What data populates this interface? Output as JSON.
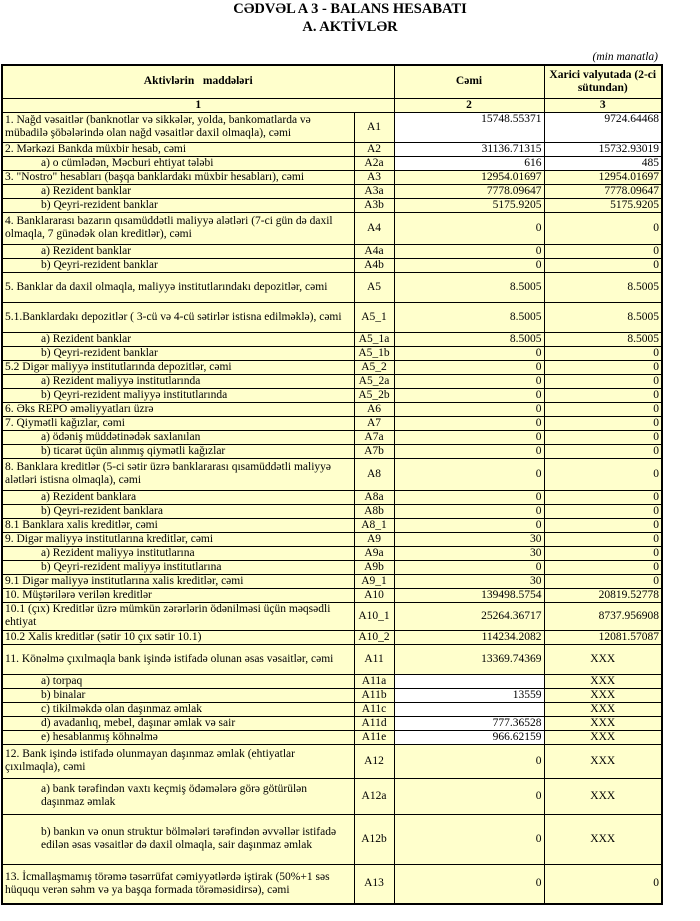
{
  "title": "CƏDVƏL A 3 - BALANS HESABATI",
  "subtitle": "A. AKTİVLƏR",
  "unit": "(min manatla)",
  "columns": {
    "items": "Aktivlərin   maddələri",
    "total": "Cəmi",
    "foreign": "Xarici valyutada (2-ci sütundan)",
    "n1": "1",
    "n2": "2",
    "n3": "3"
  },
  "rows": [
    {
      "label": "1. Nağd vəsaitlər (banknotlar və sikkələr, yolda, bankomatlarda və mübadilə şöbələrində olan nağd vəsaitlər daxil olmaqla), cəmi",
      "code": "A1",
      "total": "15748.55371",
      "foreign": "9724.64468"
    },
    {
      "label": "2. Mərkəzi Bankda müxbir hesab, cəmi",
      "code": "A2",
      "total": "31136.71315",
      "foreign": "15732.93019"
    },
    {
      "label": "a) o cümlədən, Məcburi ehtiyat tələbi",
      "code": "A2a",
      "total": "616",
      "foreign": "485",
      "indent": true
    },
    {
      "label": "3. \"Nostro\" hesabları (başqa banklardakı müxbir hesabları), cəmi",
      "code": "A3",
      "total": "12954.01697",
      "foreign": "12954.01697"
    },
    {
      "label": "a) Rezident banklar",
      "code": "A3a",
      "total": "7778.09647",
      "foreign": "7778.09647",
      "indent": true
    },
    {
      "label": "b) Qeyri-rezident banklar",
      "code": "A3b",
      "total": "5175.9205",
      "foreign": "5175.9205",
      "indent": true
    },
    {
      "label": "4. Banklararası bazarın qısamüddətli maliyyə alətləri (7-ci gün də daxil olmaqla, 7 günədək olan kreditlər), cəmi",
      "code": "A4",
      "total": "0",
      "foreign": "0"
    },
    {
      "label": "a) Rezident banklar",
      "code": "A4a",
      "total": "0",
      "foreign": "0",
      "indent": true
    },
    {
      "label": "b) Qeyri-rezident banklar",
      "code": "A4b",
      "total": "0",
      "foreign": "0",
      "indent": true
    },
    {
      "label": "5. Banklar da daxil olmaqla, maliyyə institutlarındakı depozitlər, cəmi",
      "code": "A5",
      "total": "8.5005",
      "foreign": "8.5005"
    },
    {
      "label": "5.1.Banklardakı depozitlər ( 3-cü və 4-cü sətirlər istisna edilməklə), cəmi",
      "code": "A5_1",
      "total": "8.5005",
      "foreign": "8.5005"
    },
    {
      "label": "a) Rezident banklar",
      "code": "A5_1a",
      "total": "8.5005",
      "foreign": "8.5005",
      "indent": true
    },
    {
      "label": "b) Qeyri-rezident banklar",
      "code": "A5_1b",
      "total": "0",
      "foreign": "0",
      "indent": true
    },
    {
      "label": "5.2 Digər maliyyə institutlarında depozitlər, cəmi",
      "code": "A5_2",
      "total": "0",
      "foreign": "0"
    },
    {
      "label": "a) Rezident maliyyə institutlarında",
      "code": "A5_2a",
      "total": "0",
      "foreign": "0",
      "indent": true
    },
    {
      "label": "b) Qeyri-rezident maliyyə institutlarında",
      "code": "A5_2b",
      "total": "0",
      "foreign": "0",
      "indent": true
    },
    {
      "label": "6. Əks REPO əməliyyatları üzrə",
      "code": "A6",
      "total": "0",
      "foreign": "0"
    },
    {
      "label": "7. Qiymətli kağızlar, cəmi",
      "code": "A7",
      "total": "0",
      "foreign": "0"
    },
    {
      "label": "a) ödəniş müddətinədək saxlanılan",
      "code": "A7a",
      "total": "0",
      "foreign": "0",
      "indent": true
    },
    {
      "label": "b) ticarət üçün alınmış qiymətli kağızlar",
      "code": "A7b",
      "total": "0",
      "foreign": "0",
      "indent": true
    },
    {
      "label": "8. Banklara kreditlər (5-ci sətir üzrə banklararası qısamüddətli maliyyə alətləri istisna olmaqla), cəmi",
      "code": "A8",
      "total": "0",
      "foreign": "0"
    },
    {
      "label": "a) Rezident banklara",
      "code": "A8a",
      "total": "0",
      "foreign": "0",
      "indent": true
    },
    {
      "label": "b) Qeyri-rezident banklara",
      "code": "A8b",
      "total": "0",
      "foreign": "0",
      "indent": true
    },
    {
      "label": "8.1 Banklara xalis kreditlər, cəmi",
      "code": "A8_1",
      "total": "0",
      "foreign": "0"
    },
    {
      "label": "9. Digər maliyyə institutlarına kreditlər, cəmi",
      "code": "A9",
      "total": "30",
      "foreign": "0"
    },
    {
      "label": "a) Rezident maliyyə institutlarına",
      "code": "A9a",
      "total": "30",
      "foreign": "0",
      "indent": true
    },
    {
      "label": "b) Qeyri-rezident maliyyə institutlarına",
      "code": "A9b",
      "total": "0",
      "foreign": "0",
      "indent": true
    },
    {
      "label": "9.1 Digər maliyyə institutlarına xalis kreditlər, cəmi",
      "code": "A9_1",
      "total": "30",
      "foreign": "0"
    },
    {
      "label": "10. Müştərilərə verilən kreditlər",
      "code": "A10",
      "total": "139498.5754",
      "foreign": "20819.52778"
    },
    {
      "label": "10.1 (çıx) Kreditlər üzrə mümkün zərərlərin ödənilməsi üçün məqsədli ehtiyat",
      "code": "A10_1",
      "total": "25264.36717",
      "foreign": "8737.956908"
    },
    {
      "label": "10.2 Xalis kreditlər (sətir 10 çıx sətir 10.1)",
      "code": "A10_2",
      "total": "114234.2082",
      "foreign": "12081.57087"
    },
    {
      "label": "11. Könəlmə çıxılmaqla bank işində istifadə olunan əsas vəsaitlər, cəmi",
      "code": "A11",
      "total": "13369.74369",
      "foreign": "XXX"
    },
    {
      "label": "a) torpaq",
      "code": "A11a",
      "total": "",
      "foreign": "XXX",
      "indent": true
    },
    {
      "label": "b) binalar",
      "code": "A11b",
      "total": "13559",
      "foreign": "XXX",
      "indent": true
    },
    {
      "label": "c) tikilməkdə olan daşınmaz əmlak",
      "code": "A11c",
      "total": "",
      "foreign": "XXX",
      "indent": true
    },
    {
      "label": "d) avadanlıq, mebel, daşınar əmlak və sair",
      "code": "A11d",
      "total": "777.36528",
      "foreign": "XXX",
      "indent": true
    },
    {
      "label": "e) hesablanmış köhnəlmə",
      "code": "A11e",
      "total": "966.62159",
      "foreign": "XXX",
      "indent": true
    },
    {
      "label": "12. Bank işində istifadə olunmayan daşınmaz əmlak (ehtiyatlar çıxılmaqla), cəmi",
      "code": "A12",
      "total": "0",
      "foreign": "XXX"
    },
    {
      "label": "a) bank tərəfindən vaxtı keçmiş ödəmələrə görə götürülən daşınmaz əmlak",
      "code": "A12a",
      "total": "0",
      "foreign": "XXX",
      "indent": true
    },
    {
      "label": "b) bankın və onun struktur bölmələri tərəfindən əvvəllər istifadə edilən əsas vəsaitlər də daxil olmaqla, sair daşınmaz əmlak",
      "code": "A12b",
      "total": "0",
      "foreign": "XXX",
      "indent": true
    },
    {
      "label": "13. İcmallaşmamış törəmə təsərrüfat cəmiyyətlərdə iştirak (50%+1 səs hüququ verən səhm və ya başqa formada törəməsidirsə), cəmi",
      "code": "A13",
      "total": "0",
      "foreign": "0"
    }
  ]
}
